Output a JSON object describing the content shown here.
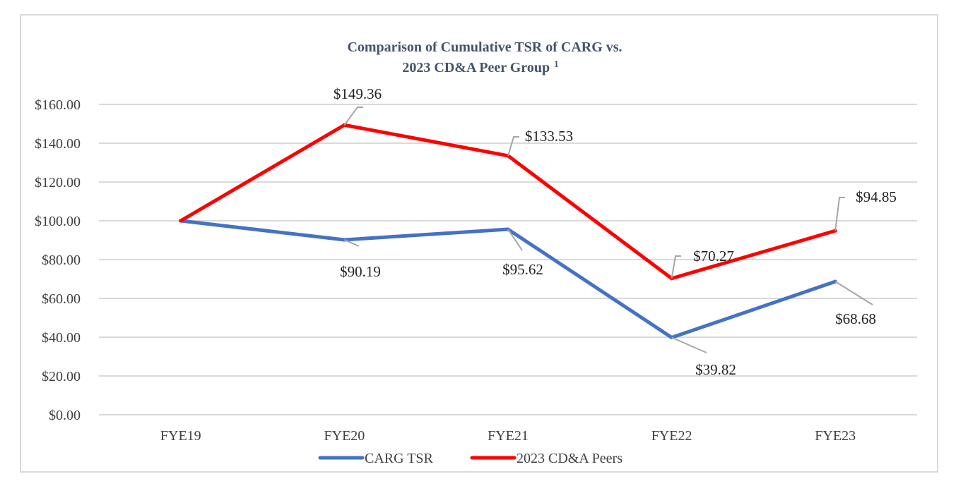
{
  "chart_data": {
    "type": "line",
    "title_line1": "Comparison of Cumulative TSR of CARG vs.",
    "title_line2": "2023 CD&A Peer Group",
    "title_superscript": "1",
    "xlabel": "",
    "ylabel": "",
    "categories": [
      "FYE19",
      "FYE20",
      "FYE21",
      "FYE22",
      "FYE23"
    ],
    "ylim": [
      0,
      160
    ],
    "ytick_step": 20,
    "ytick_labels": [
      "$0.00",
      "$20.00",
      "$40.00",
      "$60.00",
      "$80.00",
      "$100.00",
      "$120.00",
      "$140.00",
      "$160.00"
    ],
    "grid": true,
    "legend_position": "bottom",
    "series": [
      {
        "name": "CARG TSR",
        "color": "#4472c4",
        "values": [
          100.0,
          90.19,
          95.62,
          39.82,
          68.68
        ],
        "data_labels": [
          null,
          "$90.19",
          "$95.62",
          "$39.82",
          "$68.68"
        ]
      },
      {
        "name": "2023 CD&A Peers",
        "color": "#ff0000",
        "values": [
          100.0,
          149.36,
          133.53,
          70.27,
          94.85
        ],
        "data_labels": [
          null,
          "$149.36",
          "$133.53",
          "$70.27",
          "$94.85"
        ]
      }
    ]
  }
}
